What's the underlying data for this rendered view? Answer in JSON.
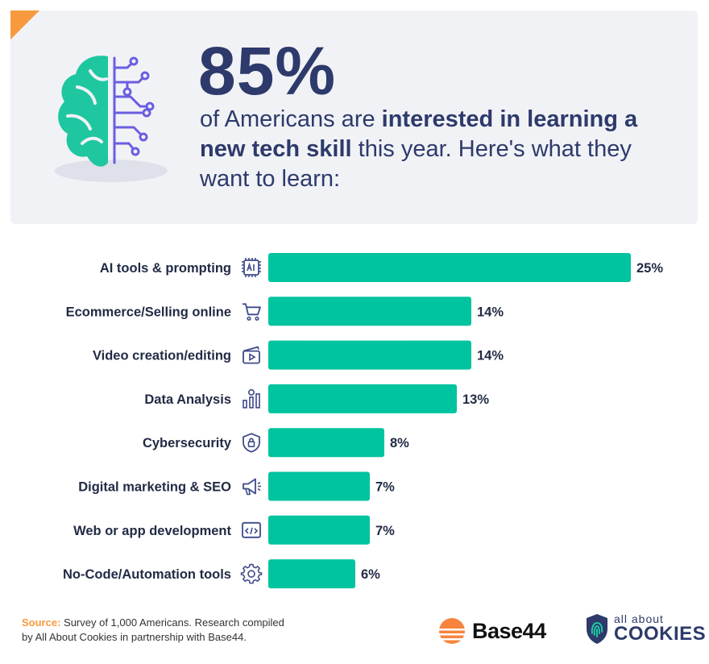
{
  "header": {
    "stat": "85%",
    "line_pre": "of Americans are ",
    "line_bold1": "interested in learning a new tech skill",
    "line_post": " this year. Here's what they want to learn:"
  },
  "chart_data": {
    "type": "bar",
    "orientation": "horizontal",
    "categories": [
      "AI tools & prompting",
      "Ecommerce/Selling online",
      "Video creation/editing",
      "Data Analysis",
      "Cybersecurity",
      "Digital marketing & SEO",
      "Web or app development",
      "No-Code/Automation tools"
    ],
    "icons": [
      "ai-chip-icon",
      "cart-icon",
      "video-clapper-icon",
      "data-chart-icon",
      "shield-lock-icon",
      "megaphone-icon",
      "code-window-icon",
      "gear-icon"
    ],
    "values": [
      25,
      14,
      14,
      13,
      8,
      7,
      7,
      6
    ],
    "value_labels": [
      "25%",
      "14%",
      "14%",
      "13%",
      "8%",
      "7%",
      "7%",
      "6%"
    ],
    "unit": "%",
    "xlim": [
      0,
      25
    ],
    "grid": false,
    "bar_color": "#00c49f",
    "label_color": "#222b45"
  },
  "footer": {
    "source_label": "Source:",
    "source_line1": " Survey of 1,000 Americans. Research compiled",
    "source_line2": "by All About Cookies in partnership with Base44.",
    "brand1": "Base44",
    "brand2_top": "all about",
    "brand2_bottom": "COOKIES"
  },
  "colors": {
    "accent": "#f79a3e",
    "teal": "#00c49f",
    "navy": "#2d3a6b",
    "icon": "#3f4a8a",
    "circuit": "#6a5ee0"
  }
}
